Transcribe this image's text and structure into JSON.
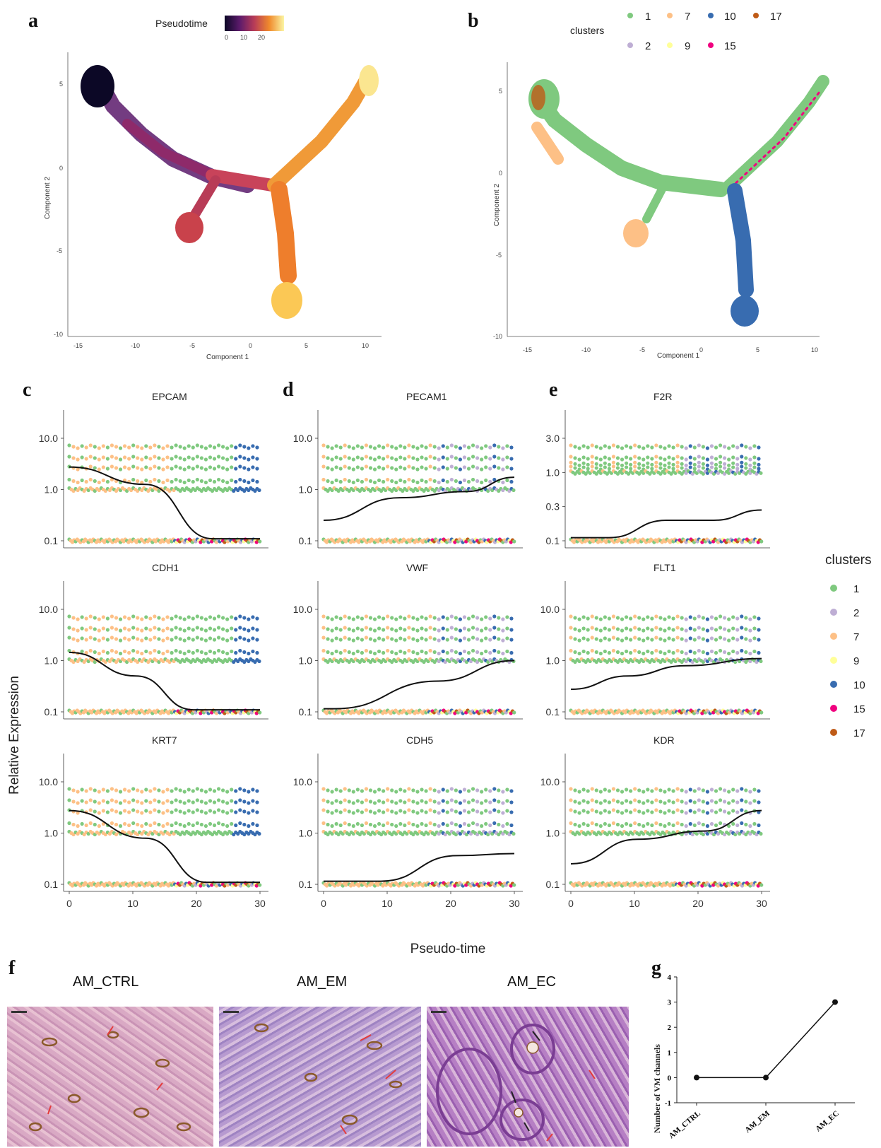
{
  "panel_labels": [
    "a",
    "b",
    "c",
    "d",
    "e",
    "f",
    "g"
  ],
  "panel_a": {
    "legend_title": "Pseudotime",
    "legend_ticks": [
      "0",
      "10",
      "20"
    ],
    "xlabel": "Component 1",
    "ylabel": "Component 2",
    "xticks": [
      "-15",
      "-10",
      "-5",
      "0",
      "5",
      "10"
    ],
    "yticks": [
      "5",
      "0",
      "-5",
      "-10"
    ]
  },
  "panel_b": {
    "legend_title": "clusters",
    "legend_row1": [
      "1",
      "7",
      "10",
      "17"
    ],
    "legend_row2": [
      "2",
      "9",
      "15"
    ],
    "xlabel": "Component 1",
    "ylabel": "Component 2",
    "xticks": [
      "-15",
      "-10",
      "-5",
      "0",
      "5",
      "10"
    ],
    "yticks": [
      "5",
      "0",
      "-5",
      "-10"
    ]
  },
  "cluster_colors": {
    "1": "#7fc97f",
    "2": "#beaed4",
    "7": "#fdc086",
    "9": "#ffff99",
    "10": "#386cb0",
    "15": "#f0027f",
    "17": "#bf5b17"
  },
  "gene_panels": {
    "ylabel": "Relative Expression",
    "xlabel": "Pseudo-time",
    "xticks": [
      "0",
      "10",
      "20",
      "30"
    ],
    "genes": [
      {
        "name": "EPCAM",
        "yticks": [
          "10.0",
          "1.0",
          "0.1"
        ]
      },
      {
        "name": "PECAM1",
        "yticks": [
          "10.0",
          "1.0",
          "0.1"
        ]
      },
      {
        "name": "F2R",
        "yticks": [
          "3.0",
          "1.0",
          "0.3",
          "0.1"
        ]
      },
      {
        "name": "CDH1",
        "yticks": [
          "10.0",
          "1.0",
          "0.1"
        ]
      },
      {
        "name": "VWF",
        "yticks": [
          "10.0",
          "1.0",
          "0.1"
        ]
      },
      {
        "name": "FLT1",
        "yticks": [
          "10.0",
          "1.0",
          "0.1"
        ]
      },
      {
        "name": "KRT7",
        "yticks": [
          "10.0",
          "1.0",
          "0.1"
        ]
      },
      {
        "name": "CDH5",
        "yticks": [
          "10.0",
          "1.0",
          "0.1"
        ]
      },
      {
        "name": "KDR",
        "yticks": [
          "10.0",
          "1.0",
          "0.1"
        ]
      }
    ]
  },
  "cluster_legend": {
    "title": "clusters",
    "items": [
      "1",
      "2",
      "7",
      "9",
      "10",
      "15",
      "17"
    ]
  },
  "panel_f": {
    "titles": [
      "AM_CTRL",
      "AM_EM",
      "AM_EC"
    ]
  },
  "chart_data": {
    "type": "line",
    "categories": [
      "AM_CTRL",
      "AM_EM",
      "AM_EC"
    ],
    "values": [
      0,
      0,
      3
    ],
    "ylabel": "Number of VM channels",
    "xlabel": "",
    "ylim": [
      -1,
      4
    ],
    "yticks": [
      "4",
      "3",
      "2",
      "1",
      "0",
      "-1"
    ]
  }
}
